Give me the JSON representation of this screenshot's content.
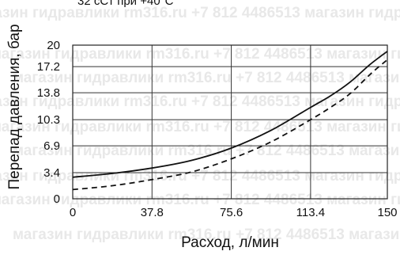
{
  "page": {
    "top_note": "32 сСт при +40°С",
    "watermark": "магазин гидравлики rm316.ru +7 812 4486513"
  },
  "chart_data": {
    "type": "line",
    "title": "",
    "xlabel": "Расход, л/мин",
    "ylabel": "Перепад давления, бар",
    "xlim": [
      0,
      150
    ],
    "ylim": [
      0,
      20
    ],
    "x_ticks": [
      0,
      37.8,
      75.6,
      113.4,
      150
    ],
    "x_tick_labels": [
      "0",
      "37.8",
      "75.6",
      "113.4",
      "150"
    ],
    "y_ticks": [
      0,
      3.4,
      6.9,
      10.3,
      13.8,
      17.2,
      20
    ],
    "y_tick_labels": [
      "0",
      "3.4",
      "6.9",
      "10.3",
      "13.8",
      "17.2",
      "20"
    ],
    "grid": true,
    "legend": "none",
    "series": [
      {
        "line_style": "solid",
        "color": "#111111",
        "x": [
          0,
          18.9,
          37.8,
          56.7,
          75.6,
          94.5,
          113.4,
          122.9,
          132.3,
          141.8,
          150
        ],
        "y": [
          2.8,
          3.3,
          4.0,
          5.0,
          6.6,
          8.9,
          11.9,
          13.4,
          15.2,
          17.5,
          19.2
        ]
      },
      {
        "line_style": "dashed",
        "color": "#111111",
        "x": [
          0,
          18.9,
          37.8,
          56.7,
          75.6,
          94.5,
          113.4,
          122.9,
          132.3,
          141.8,
          150
        ],
        "y": [
          1.2,
          1.7,
          2.5,
          3.5,
          5.2,
          7.4,
          10.3,
          11.9,
          13.7,
          16.2,
          18.1
        ]
      }
    ]
  }
}
